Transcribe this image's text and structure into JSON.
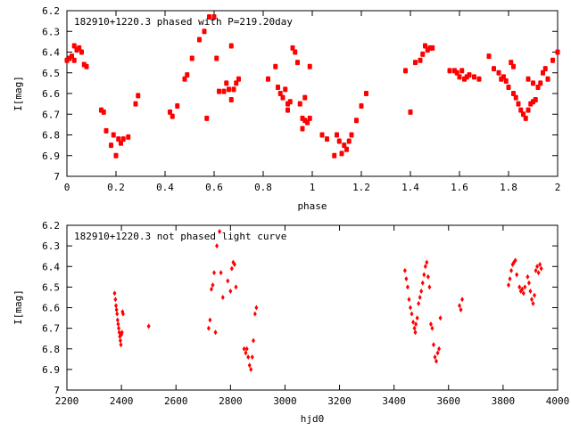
{
  "chart_data": [
    {
      "type": "scatter",
      "title": "182910+1220.3 phased with P=219.20day",
      "xlabel": "phase",
      "ylabel": "I[mag]",
      "xlim": [
        0,
        2
      ],
      "ylim": [
        6.2,
        7.0
      ],
      "y_inverted": true,
      "x_ticks": [
        0,
        0.2,
        0.4,
        0.6,
        0.8,
        1,
        1.2,
        1.4,
        1.6,
        1.8,
        2
      ],
      "x_tick_labels": [
        "0",
        "0.2",
        "0.4",
        "0.6",
        "0.8",
        "1",
        "1.2",
        "1.4",
        "1.6",
        "1.8",
        "2"
      ],
      "y_ticks": [
        6.2,
        6.3,
        6.4,
        6.5,
        6.6,
        6.7,
        6.8,
        6.9,
        7.0
      ],
      "y_tick_labels": [
        "6.2",
        "6.3",
        "6.4",
        "6.5",
        "6.6",
        "6.7",
        "6.8",
        "6.9",
        "7"
      ],
      "grid": false,
      "point_color": "#ff0000",
      "points": [
        [
          0.0,
          6.44
        ],
        [
          0.01,
          6.43
        ],
        [
          0.02,
          6.42
        ],
        [
          0.03,
          6.44
        ],
        [
          0.03,
          6.37
        ],
        [
          0.04,
          6.39
        ],
        [
          0.05,
          6.38
        ],
        [
          0.06,
          6.4
        ],
        [
          0.07,
          6.46
        ],
        [
          0.08,
          6.47
        ],
        [
          0.14,
          6.68
        ],
        [
          0.15,
          6.69
        ],
        [
          0.16,
          6.78
        ],
        [
          0.18,
          6.85
        ],
        [
          0.19,
          6.8
        ],
        [
          0.2,
          6.9
        ],
        [
          0.21,
          6.82
        ],
        [
          0.22,
          6.84
        ],
        [
          0.23,
          6.82
        ],
        [
          0.25,
          6.81
        ],
        [
          0.28,
          6.65
        ],
        [
          0.29,
          6.61
        ],
        [
          0.42,
          6.69
        ],
        [
          0.43,
          6.71
        ],
        [
          0.45,
          6.66
        ],
        [
          0.48,
          6.53
        ],
        [
          0.49,
          6.51
        ],
        [
          0.51,
          6.43
        ],
        [
          0.54,
          6.34
        ],
        [
          0.56,
          6.3
        ],
        [
          0.57,
          6.72
        ],
        [
          0.58,
          6.23
        ],
        [
          0.6,
          6.23
        ],
        [
          0.61,
          6.43
        ],
        [
          0.62,
          6.59
        ],
        [
          0.64,
          6.59
        ],
        [
          0.65,
          6.55
        ],
        [
          0.66,
          6.58
        ],
        [
          0.67,
          6.63
        ],
        [
          0.68,
          6.58
        ],
        [
          0.69,
          6.55
        ],
        [
          0.7,
          6.53
        ],
        [
          0.67,
          6.37
        ],
        [
          0.82,
          6.53
        ],
        [
          0.85,
          6.47
        ],
        [
          0.86,
          6.57
        ],
        [
          0.87,
          6.6
        ],
        [
          0.88,
          6.62
        ],
        [
          0.89,
          6.58
        ],
        [
          0.9,
          6.65
        ],
        [
          0.9,
          6.68
        ],
        [
          0.91,
          6.64
        ],
        [
          0.92,
          6.38
        ],
        [
          0.93,
          6.4
        ],
        [
          0.94,
          6.45
        ],
        [
          0.95,
          6.65
        ],
        [
          0.96,
          6.72
        ],
        [
          0.97,
          6.73
        ],
        [
          0.96,
          6.77
        ],
        [
          0.98,
          6.74
        ],
        [
          0.99,
          6.72
        ],
        [
          0.97,
          6.62
        ],
        [
          0.99,
          6.47
        ],
        [
          1.04,
          6.8
        ],
        [
          1.06,
          6.82
        ],
        [
          1.09,
          6.9
        ],
        [
          1.1,
          6.8
        ],
        [
          1.11,
          6.83
        ],
        [
          1.12,
          6.89
        ],
        [
          1.13,
          6.85
        ],
        [
          1.14,
          6.87
        ],
        [
          1.15,
          6.83
        ],
        [
          1.16,
          6.8
        ],
        [
          1.18,
          6.73
        ],
        [
          1.2,
          6.66
        ],
        [
          1.22,
          6.6
        ],
        [
          1.38,
          6.49
        ],
        [
          1.4,
          6.69
        ],
        [
          1.42,
          6.45
        ],
        [
          1.44,
          6.44
        ],
        [
          1.45,
          6.41
        ],
        [
          1.46,
          6.37
        ],
        [
          1.47,
          6.39
        ],
        [
          1.48,
          6.38
        ],
        [
          1.49,
          6.38
        ],
        [
          1.56,
          6.49
        ],
        [
          1.58,
          6.49
        ],
        [
          1.59,
          6.5
        ],
        [
          1.6,
          6.52
        ],
        [
          1.61,
          6.49
        ],
        [
          1.62,
          6.53
        ],
        [
          1.63,
          6.52
        ],
        [
          1.64,
          6.51
        ],
        [
          1.66,
          6.52
        ],
        [
          1.68,
          6.53
        ],
        [
          1.72,
          6.42
        ],
        [
          1.74,
          6.48
        ],
        [
          1.76,
          6.5
        ],
        [
          1.77,
          6.53
        ],
        [
          1.78,
          6.52
        ],
        [
          1.79,
          6.54
        ],
        [
          1.8,
          6.57
        ],
        [
          1.81,
          6.45
        ],
        [
          1.82,
          6.47
        ],
        [
          1.82,
          6.6
        ],
        [
          1.83,
          6.62
        ],
        [
          1.84,
          6.65
        ],
        [
          1.85,
          6.68
        ],
        [
          1.86,
          6.7
        ],
        [
          1.87,
          6.72
        ],
        [
          1.88,
          6.68
        ],
        [
          1.89,
          6.65
        ],
        [
          1.9,
          6.64
        ],
        [
          1.91,
          6.63
        ],
        [
          1.92,
          6.57
        ],
        [
          1.93,
          6.55
        ],
        [
          1.94,
          6.5
        ],
        [
          1.95,
          6.48
        ],
        [
          1.96,
          6.53
        ],
        [
          1.88,
          6.53
        ],
        [
          1.9,
          6.55
        ],
        [
          1.98,
          6.44
        ],
        [
          2.0,
          6.4
        ]
      ]
    },
    {
      "type": "scatter",
      "title": "182910+1220.3 not phased light curve",
      "xlabel": "hjd0",
      "ylabel": "I[mag]",
      "xlim": [
        2200,
        4000
      ],
      "ylim": [
        6.2,
        7.0
      ],
      "y_inverted": true,
      "x_ticks": [
        2200,
        2400,
        2600,
        2800,
        3000,
        3200,
        3400,
        3600,
        3800,
        4000
      ],
      "x_tick_labels": [
        "2200",
        "2400",
        "2600",
        "2800",
        "3000",
        "3200",
        "3400",
        "3600",
        "3800",
        "4000"
      ],
      "y_ticks": [
        6.2,
        6.3,
        6.4,
        6.5,
        6.6,
        6.7,
        6.8,
        6.9,
        7.0
      ],
      "y_tick_labels": [
        "6.2",
        "6.3",
        "6.4",
        "6.5",
        "6.6",
        "6.7",
        "6.8",
        "6.9",
        "7"
      ],
      "grid": false,
      "point_color": "#ff0000",
      "points": [
        [
          2375,
          6.53
        ],
        [
          2378,
          6.56
        ],
        [
          2380,
          6.59
        ],
        [
          2382,
          6.61
        ],
        [
          2384,
          6.63
        ],
        [
          2386,
          6.66
        ],
        [
          2388,
          6.68
        ],
        [
          2390,
          6.7
        ],
        [
          2392,
          6.72
        ],
        [
          2394,
          6.74
        ],
        [
          2396,
          6.76
        ],
        [
          2398,
          6.78
        ],
        [
          2400,
          6.73
        ],
        [
          2402,
          6.72
        ],
        [
          2404,
          6.62
        ],
        [
          2406,
          6.63
        ],
        [
          2500,
          6.69
        ],
        [
          2720,
          6.7
        ],
        [
          2725,
          6.66
        ],
        [
          2730,
          6.51
        ],
        [
          2735,
          6.49
        ],
        [
          2740,
          6.43
        ],
        [
          2745,
          6.72
        ],
        [
          2750,
          6.3
        ],
        [
          2760,
          6.23
        ],
        [
          2765,
          6.43
        ],
        [
          2772,
          6.55
        ],
        [
          2790,
          6.47
        ],
        [
          2800,
          6.52
        ],
        [
          2805,
          6.41
        ],
        [
          2810,
          6.38
        ],
        [
          2815,
          6.39
        ],
        [
          2820,
          6.5
        ],
        [
          2850,
          6.8
        ],
        [
          2856,
          6.82
        ],
        [
          2860,
          6.8
        ],
        [
          2865,
          6.84
        ],
        [
          2870,
          6.88
        ],
        [
          2875,
          6.9
        ],
        [
          2880,
          6.84
        ],
        [
          2884,
          6.76
        ],
        [
          2890,
          6.63
        ],
        [
          2895,
          6.6
        ],
        [
          3440,
          6.42
        ],
        [
          3445,
          6.46
        ],
        [
          3450,
          6.5
        ],
        [
          3455,
          6.56
        ],
        [
          3460,
          6.6
        ],
        [
          3465,
          6.63
        ],
        [
          3470,
          6.67
        ],
        [
          3475,
          6.7
        ],
        [
          3478,
          6.72
        ],
        [
          3480,
          6.68
        ],
        [
          3485,
          6.65
        ],
        [
          3490,
          6.58
        ],
        [
          3495,
          6.55
        ],
        [
          3500,
          6.52
        ],
        [
          3505,
          6.48
        ],
        [
          3510,
          6.44
        ],
        [
          3515,
          6.4
        ],
        [
          3520,
          6.38
        ],
        [
          3525,
          6.45
        ],
        [
          3530,
          6.5
        ],
        [
          3535,
          6.68
        ],
        [
          3540,
          6.7
        ],
        [
          3545,
          6.78
        ],
        [
          3550,
          6.84
        ],
        [
          3555,
          6.86
        ],
        [
          3560,
          6.82
        ],
        [
          3565,
          6.8
        ],
        [
          3570,
          6.65
        ],
        [
          3640,
          6.59
        ],
        [
          3645,
          6.61
        ],
        [
          3650,
          6.56
        ],
        [
          3820,
          6.49
        ],
        [
          3825,
          6.46
        ],
        [
          3830,
          6.42
        ],
        [
          3835,
          6.39
        ],
        [
          3840,
          6.38
        ],
        [
          3845,
          6.37
        ],
        [
          3850,
          6.44
        ],
        [
          3860,
          6.5
        ],
        [
          3865,
          6.52
        ],
        [
          3870,
          6.51
        ],
        [
          3875,
          6.53
        ],
        [
          3880,
          6.5
        ],
        [
          3890,
          6.45
        ],
        [
          3895,
          6.48
        ],
        [
          3900,
          6.52
        ],
        [
          3905,
          6.56
        ],
        [
          3910,
          6.58
        ],
        [
          3915,
          6.54
        ],
        [
          3920,
          6.42
        ],
        [
          3925,
          6.4
        ],
        [
          3930,
          6.43
        ],
        [
          3935,
          6.39
        ],
        [
          3940,
          6.41
        ]
      ]
    }
  ]
}
